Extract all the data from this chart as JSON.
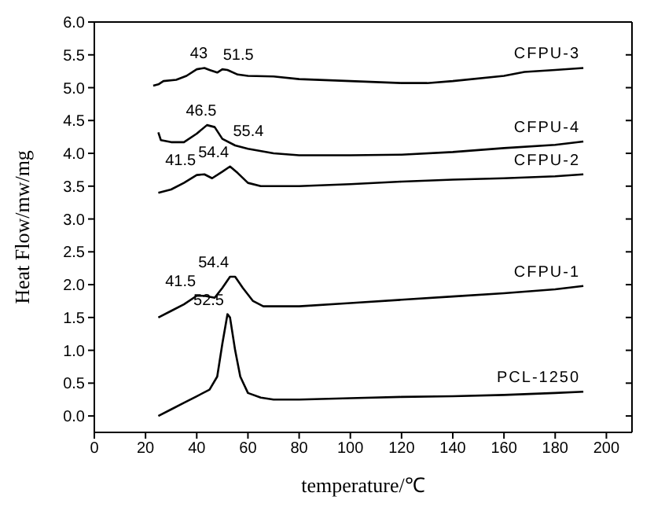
{
  "chart_data": {
    "type": "line",
    "xlabel": "temperature/℃",
    "ylabel": "Heat Flow/mw/mg",
    "xlim": [
      0,
      210
    ],
    "xticks": [
      0,
      20,
      40,
      60,
      80,
      100,
      120,
      140,
      160,
      180,
      200
    ],
    "ylim": [
      -0.25,
      6.0
    ],
    "yticks": [
      {
        "value": 0,
        "label": "0.0"
      },
      0.5,
      {
        "value": 1,
        "label": "1.0"
      },
      1.5,
      {
        "value": 2,
        "label": "2.0"
      },
      2.5,
      {
        "value": 3,
        "label": "3.0"
      },
      3.5,
      {
        "value": 4,
        "label": "4.0"
      },
      4.5,
      {
        "value": 5,
        "label": "5.0"
      },
      5.5,
      {
        "value": 6,
        "label": "6.0"
      }
    ],
    "legend": false,
    "grid": false,
    "marker": "none",
    "line_style": "solid",
    "series": [
      {
        "name": "CFPU-3",
        "color": "#000000",
        "x": [
          23,
          25,
          27,
          32,
          36,
          40,
          43,
          45,
          48,
          50,
          52,
          56,
          60,
          70,
          80,
          100,
          120,
          130,
          140,
          160,
          168,
          180,
          191
        ],
        "values": [
          5.03,
          5.05,
          5.1,
          5.12,
          5.18,
          5.28,
          5.3,
          5.27,
          5.23,
          5.28,
          5.27,
          5.2,
          5.18,
          5.17,
          5.13,
          5.1,
          5.07,
          5.07,
          5.1,
          5.18,
          5.24,
          5.27,
          5.3
        ]
      },
      {
        "name": "CFPU-4",
        "color": "#000000",
        "x": [
          25,
          26,
          30,
          35,
          40,
          44,
          47,
          50,
          55,
          60,
          70,
          80,
          100,
          120,
          140,
          160,
          180,
          191
        ],
        "values": [
          4.32,
          4.2,
          4.17,
          4.17,
          4.3,
          4.43,
          4.4,
          4.22,
          4.12,
          4.07,
          4.0,
          3.97,
          3.97,
          3.98,
          4.02,
          4.08,
          4.13,
          4.18
        ]
      },
      {
        "name": "CFPU-2",
        "color": "#000000",
        "x": [
          25,
          30,
          35,
          40,
          43,
          46,
          50,
          53,
          56,
          60,
          65,
          80,
          100,
          120,
          140,
          160,
          180,
          191
        ],
        "values": [
          3.4,
          3.45,
          3.55,
          3.67,
          3.68,
          3.62,
          3.72,
          3.8,
          3.7,
          3.55,
          3.5,
          3.5,
          3.53,
          3.57,
          3.6,
          3.62,
          3.65,
          3.68
        ]
      },
      {
        "name": "CFPU-1",
        "color": "#000000",
        "x": [
          25,
          30,
          35,
          40,
          43,
          47,
          50,
          53,
          55,
          58,
          62,
          66,
          80,
          100,
          120,
          140,
          160,
          180,
          191
        ],
        "values": [
          1.5,
          1.6,
          1.7,
          1.83,
          1.83,
          1.8,
          1.95,
          2.12,
          2.12,
          1.95,
          1.75,
          1.67,
          1.67,
          1.72,
          1.77,
          1.82,
          1.87,
          1.93,
          1.98
        ]
      },
      {
        "name": "PCL-1250",
        "color": "#000000",
        "x": [
          25,
          30,
          35,
          40,
          45,
          48,
          50,
          52,
          53,
          55,
          57,
          60,
          65,
          70,
          80,
          100,
          120,
          140,
          160,
          180,
          191
        ],
        "values": [
          0,
          0.1,
          0.2,
          0.3,
          0.4,
          0.6,
          1.1,
          1.55,
          1.5,
          1.0,
          0.6,
          0.35,
          0.28,
          0.25,
          0.25,
          0.27,
          0.29,
          0.3,
          0.32,
          0.35,
          0.37
        ]
      }
    ],
    "annotations": [
      {
        "text": "43",
        "x": 43,
        "y": 5.3
      },
      {
        "text": "51.5",
        "x": 51.5,
        "y": 5.28
      },
      {
        "text": "46.5",
        "x": 46.5,
        "y": 4.43
      },
      {
        "text": "55.4",
        "x": 55.4,
        "y": 4.12
      },
      {
        "text": "41.5",
        "x": 41.5,
        "y": 3.68
      },
      {
        "text": "54.4",
        "x": 54.4,
        "y": 3.8
      },
      {
        "text": "41.5",
        "x": 41.5,
        "y": 1.83
      },
      {
        "text": "54.4",
        "x": 54.4,
        "y": 2.12
      },
      {
        "text": "52.5",
        "x": 52.5,
        "y": 1.55
      }
    ]
  }
}
